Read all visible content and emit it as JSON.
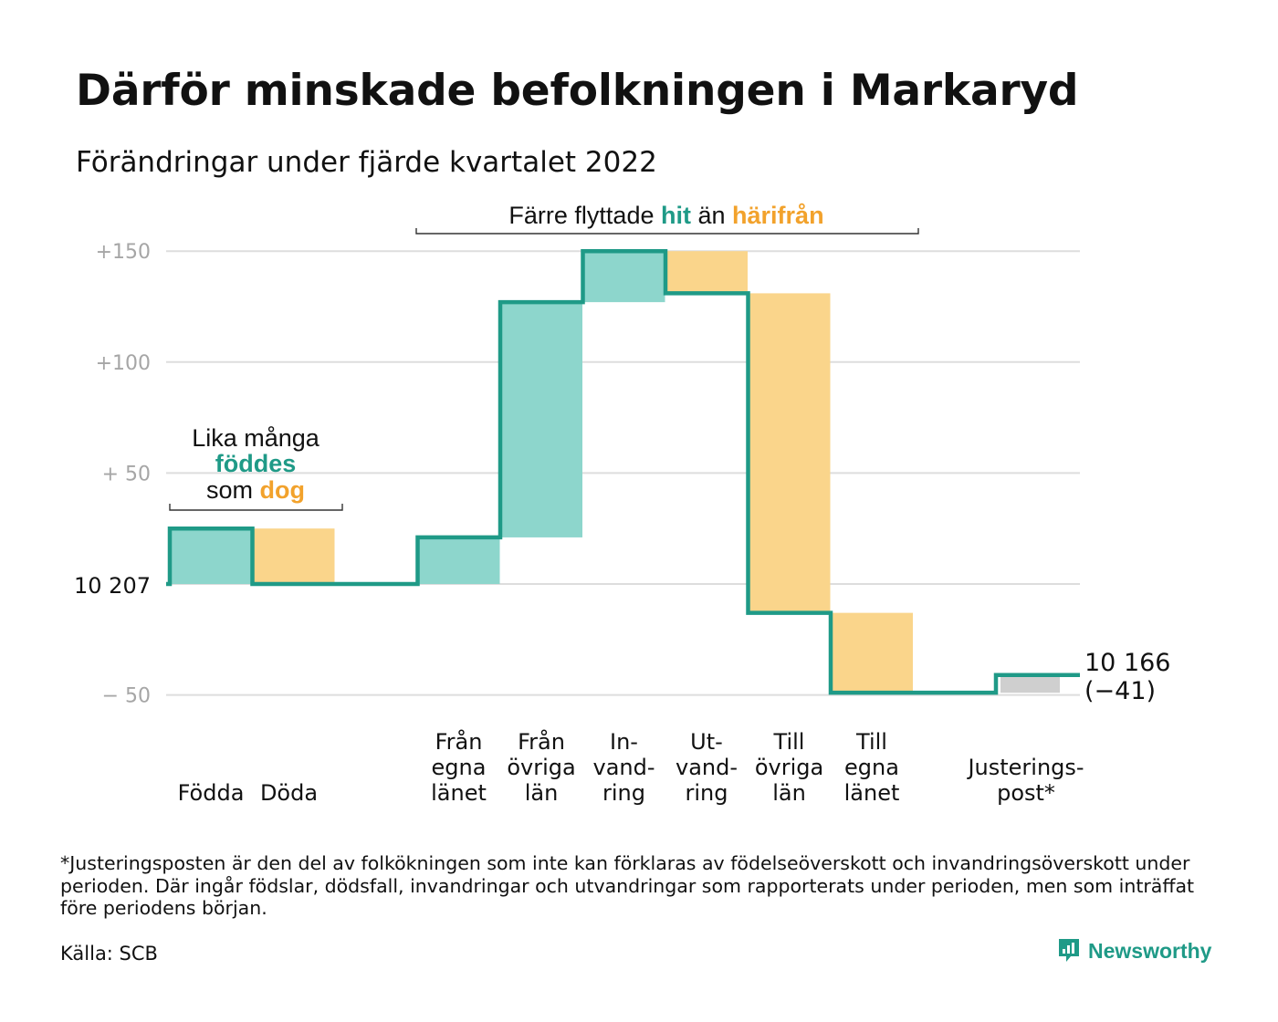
{
  "title": "Därför minskade befolkningen i Markaryd",
  "subtitle": "Förändringar under fjärde kvartalet 2022",
  "chart_data": {
    "type": "waterfall",
    "baseline_label": "10 207",
    "baseline_value": 10207,
    "y_ticks": [
      {
        "value": 150,
        "label": "+150"
      },
      {
        "value": 100,
        "label": "+100"
      },
      {
        "value": 50,
        "label": "+ 50"
      },
      {
        "value": -50,
        "label": "− 50"
      }
    ],
    "ylim": [
      -50,
      150
    ],
    "grid": true,
    "categories": [
      {
        "lines": [
          "Födda"
        ],
        "value": 25
      },
      {
        "lines": [
          "Döda"
        ],
        "value": -25
      },
      {
        "lines": [
          ""
        ],
        "value": 0
      },
      {
        "lines": [
          "Från",
          "egna",
          "länet"
        ],
        "value": 21
      },
      {
        "lines": [
          "Från",
          "övriga",
          "län"
        ],
        "value": 106
      },
      {
        "lines": [
          "In-",
          "vand-",
          "ring"
        ],
        "value": 23
      },
      {
        "lines": [
          "Ut-",
          "vand-",
          "ring"
        ],
        "value": -19
      },
      {
        "lines": [
          "Till",
          "övriga",
          "län"
        ],
        "value": -144
      },
      {
        "lines": [
          "Till",
          "egna",
          "länet"
        ],
        "value": -36
      },
      {
        "lines": [
          ""
        ],
        "value": 0
      },
      {
        "lines": [
          "Justerings-",
          "post*"
        ],
        "value": 8
      }
    ],
    "end_label": "10 166",
    "end_change_label": "(−41)",
    "annotations": [
      {
        "lines": [
          [
            {
              "text": "Lika många",
              "color": "dark"
            }
          ],
          [
            {
              "text": "föddes",
              "color": "teal"
            }
          ],
          [
            {
              "text": "som ",
              "color": "dark"
            },
            {
              "text": "dog",
              "color": "orange"
            }
          ]
        ]
      },
      {
        "lines": [
          [
            {
              "text": "Färre flyttade ",
              "color": "dark"
            },
            {
              "text": "hit",
              "color": "teal"
            },
            {
              "text": " än ",
              "color": "dark"
            },
            {
              "text": "härifrån",
              "color": "orange"
            }
          ]
        ]
      }
    ],
    "colors": {
      "increase": "#8dd6cc",
      "decrease": "#fad58b",
      "adjustment": "#cfcfcf",
      "line": "#1f9a87",
      "teal_text": "#1f9a87",
      "orange_text": "#f2a22c",
      "grid": "#dddddd",
      "tick_text": "#a6a6a6"
    }
  },
  "footnote": "*Justeringsposten är den del av folkökningen som inte kan förklaras av födelseöverskott och invandringsöverskott under perioden. Där ingår födslar, dödsfall, invandringar och utvandringar som rapporterats under perioden, men som inträffat före periodens början.",
  "source": "Källa: SCB",
  "brand": {
    "name": "Newsworthy",
    "icon": "newsworthy-logo-icon"
  }
}
